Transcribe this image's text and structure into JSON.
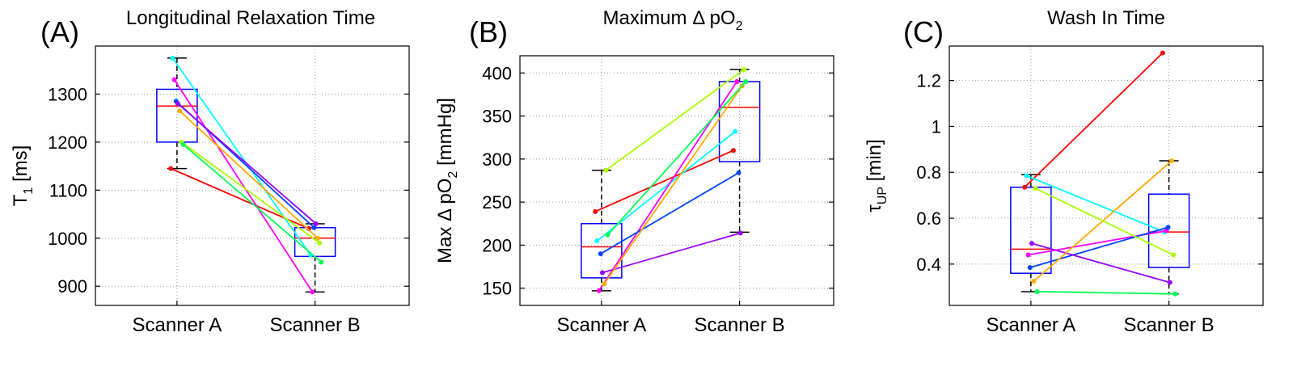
{
  "chart_data": [
    {
      "type": "box",
      "panel_letter": "(A)",
      "title": "Longitudinal Relaxation Time",
      "ylabel_parts": {
        "main": "T",
        "sub": "1",
        "rest": " [ms]"
      },
      "categories": [
        "Scanner A",
        "Scanner B"
      ],
      "ylim": [
        860,
        1400
      ],
      "yticks": [
        900,
        1000,
        1100,
        1200,
        1300
      ],
      "ytick_labels": [
        "900",
        "1000",
        "1100",
        "1200",
        "1300"
      ],
      "grid": true,
      "boxes": [
        {
          "category": "Scanner A",
          "q1": 1200,
          "median": 1275,
          "q3": 1310,
          "whisker_low": 1145,
          "whisker_high": 1375
        },
        {
          "category": "Scanner B",
          "q1": 962,
          "median": 1000,
          "q3": 1022,
          "whisker_low": 888,
          "whisker_high": 1030
        }
      ],
      "series": [
        {
          "color": "#ff0000",
          "values": [
            1145,
            1020
          ]
        },
        {
          "color": "#00ffff",
          "values": [
            1375,
            965
          ]
        },
        {
          "color": "#ff00ff",
          "values": [
            1330,
            888
          ]
        },
        {
          "color": "#0044ff",
          "values": [
            1285,
            1022
          ]
        },
        {
          "color": "#9900ff",
          "values": [
            1280,
            1030
          ]
        },
        {
          "color": "#ffaa00",
          "values": [
            1265,
            1000
          ]
        },
        {
          "color": "#aaff00",
          "values": [
            1200,
            990
          ]
        },
        {
          "color": "#00ff55",
          "values": [
            1195,
            950
          ]
        }
      ]
    },
    {
      "type": "box",
      "panel_letter": "(B)",
      "title_parts": {
        "main": "Maximum Δ pO",
        "sub": "2"
      },
      "ylabel_parts": {
        "main": "Max Δ pO",
        "sub": "2",
        "rest": " [mmHg]"
      },
      "categories": [
        "Scanner A",
        "Scanner B"
      ],
      "ylim": [
        130,
        420
      ],
      "yticks": [
        150,
        200,
        250,
        300,
        350,
        400
      ],
      "ytick_labels": [
        "150",
        "200",
        "250",
        "300",
        "350",
        "400"
      ],
      "grid": true,
      "boxes": [
        {
          "category": "Scanner A",
          "q1": 162,
          "median": 198,
          "q3": 225,
          "whisker_low": 147,
          "whisker_high": 287
        },
        {
          "category": "Scanner B",
          "q1": 297,
          "median": 360,
          "q3": 390,
          "whisker_low": 215,
          "whisker_high": 404
        }
      ],
      "series": [
        {
          "color": "#ff0000",
          "values": [
            239,
            310
          ]
        },
        {
          "color": "#00ffff",
          "values": [
            205,
            332
          ]
        },
        {
          "color": "#ff00ff",
          "values": [
            147,
            390
          ]
        },
        {
          "color": "#0044ff",
          "values": [
            190,
            284
          ]
        },
        {
          "color": "#9900ff",
          "values": [
            168,
            214
          ]
        },
        {
          "color": "#ffaa00",
          "values": [
            155,
            385
          ]
        },
        {
          "color": "#aaff00",
          "values": [
            287,
            404
          ]
        },
        {
          "color": "#00ff55",
          "values": [
            212,
            390
          ]
        }
      ]
    },
    {
      "type": "box",
      "panel_letter": "(C)",
      "title": "Wash In Time",
      "ylabel_parts": {
        "main": "τ",
        "sub": "UP",
        "rest": " [min]"
      },
      "categories": [
        "Scanner A",
        "Scanner B"
      ],
      "ylim": [
        0.22,
        1.35
      ],
      "yticks": [
        0.4,
        0.6,
        0.8,
        1.0,
        1.2
      ],
      "ytick_labels": [
        "0.4",
        "0.6",
        "0.8",
        "1",
        "1.2"
      ],
      "grid": true,
      "boxes": [
        {
          "category": "Scanner A",
          "q1": 0.36,
          "median": 0.465,
          "q3": 0.735,
          "whisker_low": 0.28,
          "whisker_high": 0.79
        },
        {
          "category": "Scanner B",
          "q1": 0.385,
          "median": 0.54,
          "q3": 0.705,
          "whisker_low": 0.27,
          "whisker_high": 0.85
        }
      ],
      "series": [
        {
          "color": "#ff0000",
          "values": [
            0.735,
            1.32
          ]
        },
        {
          "color": "#00ffff",
          "values": [
            0.785,
            0.54
          ]
        },
        {
          "color": "#ff00ff",
          "values": [
            0.44,
            0.545
          ]
        },
        {
          "color": "#0044ff",
          "values": [
            0.385,
            0.56
          ]
        },
        {
          "color": "#9900ff",
          "values": [
            0.49,
            0.32
          ]
        },
        {
          "color": "#ffaa00",
          "values": [
            0.325,
            0.85
          ]
        },
        {
          "color": "#aaff00",
          "values": [
            0.73,
            0.44
          ]
        },
        {
          "color": "#00ff55",
          "values": [
            0.28,
            0.27
          ]
        }
      ]
    }
  ]
}
